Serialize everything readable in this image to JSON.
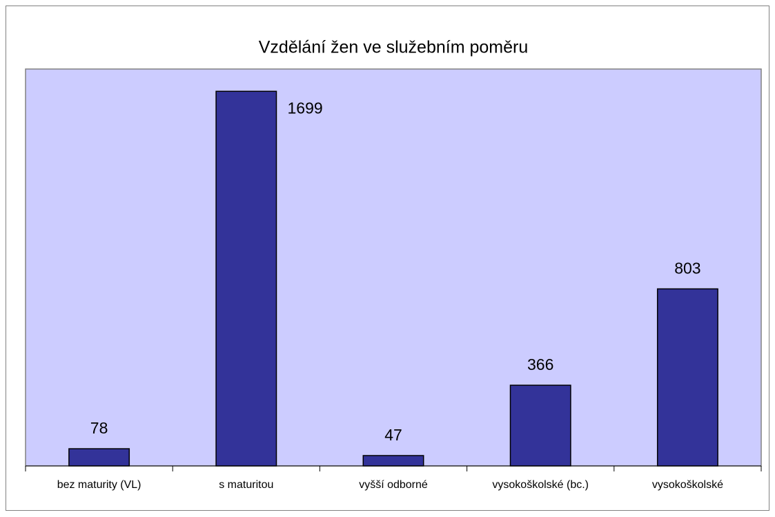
{
  "chart_data": {
    "type": "bar",
    "title": "Vzdělání žen ve služebním poměru",
    "categories": [
      "bez maturity (VL)",
      "s maturitou",
      "vyšší odborné",
      "vysokoškolské (bc.)",
      "vysokoškolské"
    ],
    "values": [
      78,
      1699,
      47,
      366,
      803
    ],
    "color": "#333399",
    "background": "#ccccff",
    "ylim": [
      0,
      1800
    ]
  }
}
